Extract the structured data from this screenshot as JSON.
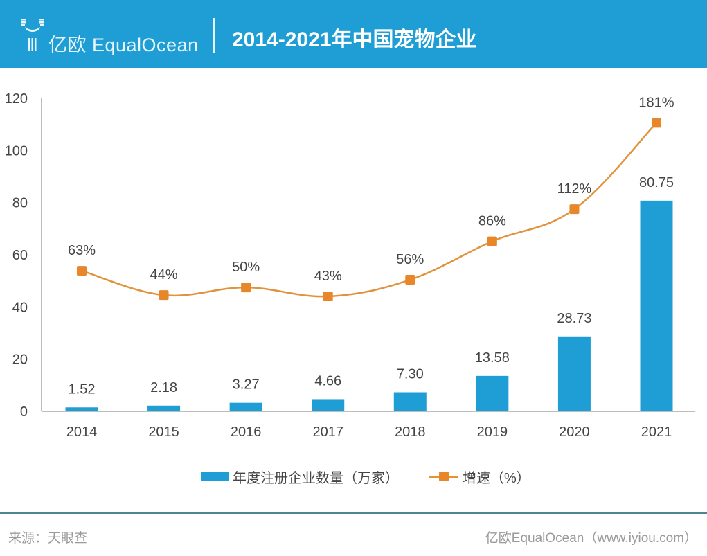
{
  "header": {
    "logo_text": "亿欧 EqualOcean",
    "title": "2014-2021年中国宠物企业"
  },
  "colors": {
    "header_bg": "#1e9ed4",
    "bar": "#1e9ed4",
    "line": "#e8922e",
    "marker": "#e8862a"
  },
  "chart_data": {
    "type": "bar+line",
    "title": "2014-2021年中国宠物企业",
    "categories": [
      "2014",
      "2015",
      "2016",
      "2017",
      "2018",
      "2019",
      "2020",
      "2021"
    ],
    "ylim": [
      0,
      120
    ],
    "yticks": [
      "0",
      "20",
      "40",
      "60",
      "80",
      "100",
      "120"
    ],
    "grid": false,
    "legend_position": "bottom",
    "series": [
      {
        "name": "年度注册企业数量（万家）",
        "type": "bar",
        "values": [
          1.52,
          2.18,
          3.27,
          4.66,
          7.3,
          13.58,
          28.73,
          80.75
        ],
        "labels": [
          "1.52",
          "2.18",
          "3.27",
          "4.66",
          "7.30",
          "13.58",
          "28.73",
          "80.75"
        ]
      },
      {
        "name": "增速（%）",
        "type": "line",
        "smooth": true,
        "marker": "square",
        "values": [
          63,
          44,
          50,
          43,
          56,
          86,
          112,
          181
        ],
        "labels": [
          "63%",
          "44%",
          "50%",
          "43%",
          "56%",
          "86%",
          "112%",
          "181%"
        ]
      }
    ]
  },
  "legend": {
    "bar_label": "年度注册企业数量（万家）",
    "line_label": "增速（%）"
  },
  "footer": {
    "source": "来源：天眼查",
    "credit": "亿欧EqualOcean（www.iyiou.com）"
  }
}
